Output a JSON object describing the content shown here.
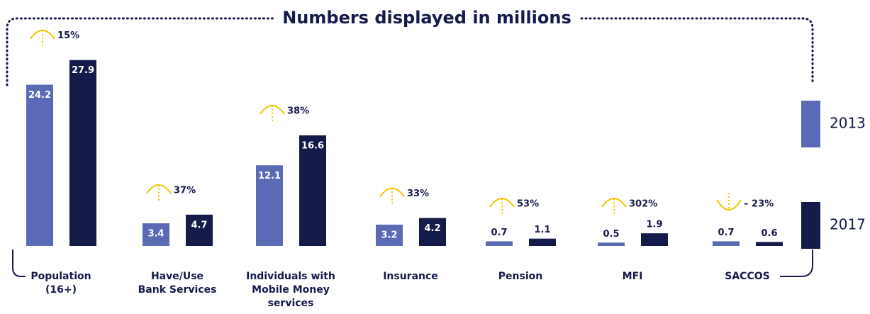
{
  "chart_data": {
    "type": "bar",
    "title": "Numbers displayed in millions",
    "categories": [
      "Population\n(16+)",
      "Have/Use\nBank Services",
      "Individuals with\nMobile Money\nservices",
      "Insurance",
      "Pension",
      "MFI",
      "SACCOS"
    ],
    "series": [
      {
        "name": "2013",
        "color": "#5b6ab5",
        "values": [
          24.2,
          3.4,
          12.1,
          3.2,
          0.7,
          0.5,
          0.7
        ]
      },
      {
        "name": "2017",
        "color": "#141a4a",
        "values": [
          27.9,
          4.7,
          16.6,
          4.2,
          1.1,
          1.9,
          0.6
        ]
      }
    ],
    "changes": [
      15,
      37,
      38,
      33,
      53,
      302,
      -23
    ],
    "change_labels": [
      "15%",
      "37%",
      "38%",
      "33%",
      "53%",
      "302%",
      "– 23%"
    ],
    "arrow_color": "#f2c500"
  }
}
